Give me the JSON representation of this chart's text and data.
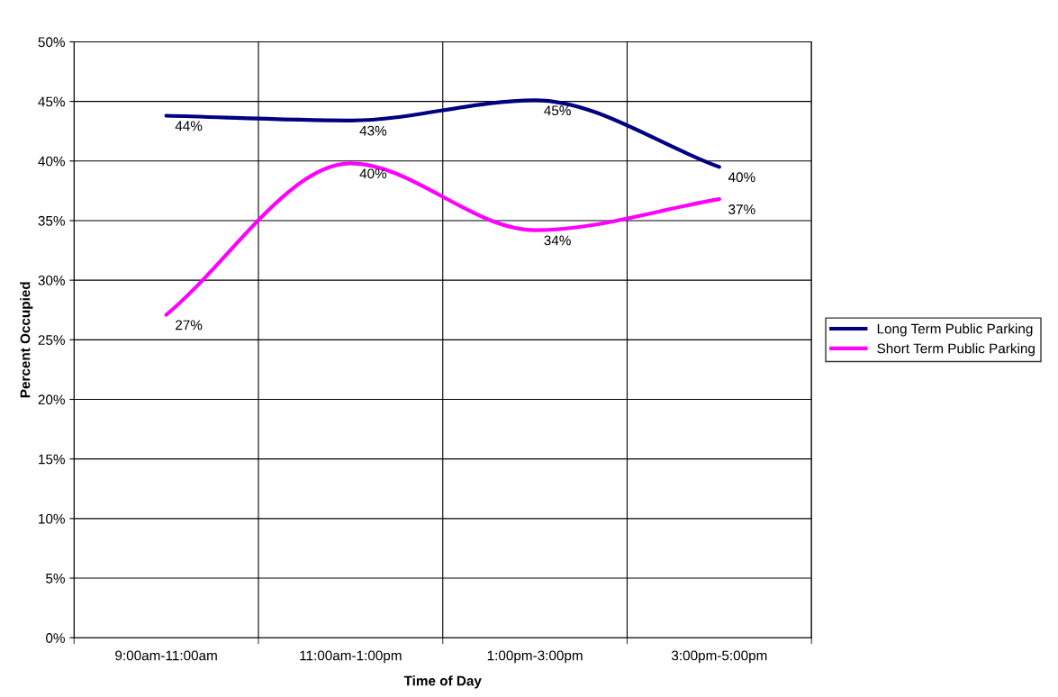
{
  "chart_data": {
    "type": "line",
    "xlabel": "Time of Day",
    "ylabel": "Percent Occupied",
    "categories": [
      "9:00am-11:00am",
      "11:00am-1:00pm",
      "1:00pm-3:00pm",
      "3:00pm-5:00pm"
    ],
    "series": [
      {
        "name": "Long Term Public Parking",
        "color": "#000080",
        "values": [
          43.8,
          43.4,
          45.1,
          39.5
        ],
        "value_labels": [
          "44%",
          "43%",
          "45%",
          "40%"
        ]
      },
      {
        "name": "Short Term Public Parking",
        "color": "#ff00ff",
        "values": [
          27.1,
          39.8,
          34.2,
          36.8
        ],
        "value_labels": [
          "27%",
          "40%",
          "34%",
          "37%"
        ]
      }
    ],
    "ylim": [
      0,
      50
    ],
    "yticks": [
      {
        "value": 0,
        "label": "0%"
      },
      {
        "value": 5,
        "label": "5%"
      },
      {
        "value": 10,
        "label": "10%"
      },
      {
        "value": 15,
        "label": "15%"
      },
      {
        "value": 20,
        "label": "20%"
      },
      {
        "value": 25,
        "label": "25%"
      },
      {
        "value": 30,
        "label": "30%"
      },
      {
        "value": 35,
        "label": "35%"
      },
      {
        "value": 40,
        "label": "40%"
      },
      {
        "value": 45,
        "label": "45%"
      },
      {
        "value": 50,
        "label": "50%"
      }
    ],
    "grid": true,
    "legend": "right",
    "marker": "none",
    "line_style": "solid"
  }
}
